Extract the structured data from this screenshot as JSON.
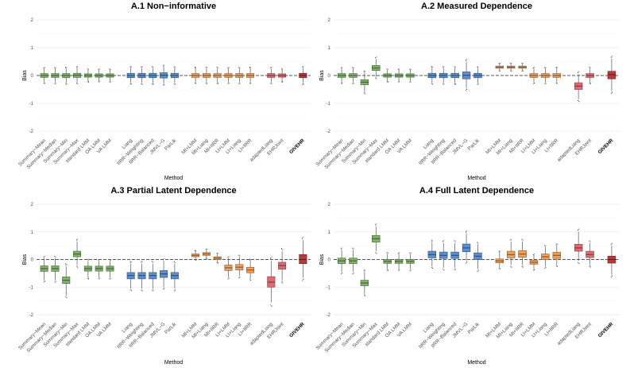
{
  "chart_data": {
    "type": "boxplot",
    "colors": {
      "summary": "#7fb36a",
      "joint": "#5b8fd1",
      "mi": "#f0a05a",
      "adapted": "#e06a73",
      "givehr": "#b83a3a",
      "reference_line": "#555555",
      "grid": "#ebebeb"
    },
    "ylim": [
      -2.2,
      2.2
    ],
    "yticks": [
      -2,
      -1,
      0,
      1,
      2
    ],
    "reference_value": 0,
    "panels": [
      {
        "title": "A.1 Non−informative",
        "xlabel": "Method",
        "ylabel": "Bias",
        "groups": [
          {
            "category": "summary",
            "labels": [
              "Summary−Mean",
              "Summary−Median",
              "Summary−Min",
              "Summary−Max",
              "standard LMM",
              "OA LMM",
              "VA LMM"
            ],
            "medians": [
              0,
              0,
              0,
              0.01,
              0,
              0,
              0
            ],
            "q1": [
              -0.07,
              -0.07,
              -0.08,
              -0.07,
              -0.06,
              -0.06,
              -0.06
            ],
            "q3": [
              0.07,
              0.07,
              0.07,
              0.08,
              0.06,
              0.06,
              0.06
            ],
            "lo": [
              -0.25,
              -0.25,
              -0.27,
              -0.25,
              -0.2,
              -0.2,
              -0.2
            ],
            "hi": [
              0.25,
              0.25,
              0.25,
              0.27,
              0.2,
              0.2,
              0.2
            ]
          },
          {
            "category": "joint",
            "labels": [
              "Liang",
              "IIRR−Weighting",
              "IIRR−Balanced",
              "JMVL−G",
              "ParLik"
            ],
            "medians": [
              0,
              0,
              0,
              0.01,
              0
            ],
            "q1": [
              -0.08,
              -0.08,
              -0.08,
              -0.09,
              -0.08
            ],
            "q3": [
              0.08,
              0.08,
              0.08,
              0.1,
              0.08
            ],
            "lo": [
              -0.27,
              -0.27,
              -0.27,
              -0.3,
              -0.27
            ],
            "hi": [
              0.27,
              0.27,
              0.27,
              0.32,
              0.27
            ]
          },
          {
            "category": "mi",
            "labels": [
              "MI+LMM",
              "MI+Liang",
              "MI+IIRR",
              "LI+LMM",
              "LI+Liang",
              "LI+IIRR"
            ],
            "medians": [
              0,
              0,
              0,
              0,
              0,
              0
            ],
            "q1": [
              -0.07,
              -0.07,
              -0.07,
              -0.07,
              -0.07,
              -0.07
            ],
            "q3": [
              0.07,
              0.07,
              0.07,
              0.07,
              0.07,
              0.07
            ],
            "lo": [
              -0.25,
              -0.25,
              -0.25,
              -0.25,
              -0.25,
              -0.25
            ],
            "hi": [
              0.25,
              0.25,
              0.25,
              0.25,
              0.25,
              0.25
            ]
          },
          {
            "category": "adapted",
            "labels": [
              "adaptedLiang",
              "EHRJoint"
            ],
            "medians": [
              0,
              0
            ],
            "q1": [
              -0.07,
              -0.06
            ],
            "q3": [
              0.07,
              0.06
            ],
            "lo": [
              -0.25,
              -0.2
            ],
            "hi": [
              0.25,
              0.2
            ]
          },
          {
            "category": "givehr",
            "labels": [
              "GIVEHR"
            ],
            "medians": [
              0
            ],
            "q1": [
              -0.08
            ],
            "q3": [
              0.08
            ],
            "lo": [
              -0.28
            ],
            "hi": [
              0.28
            ]
          }
        ]
      },
      {
        "title": "A.2 Measured Dependence",
        "xlabel": "Method",
        "ylabel": "Bias",
        "groups": [
          {
            "category": "summary",
            "labels": [
              "Summary−Mean",
              "Summary−Median",
              "Summary−Min",
              "Summary−Max",
              "standard LMM",
              "OA LMM",
              "VA LMM"
            ],
            "medians": [
              0,
              0,
              -0.24,
              0.27,
              0,
              0,
              0
            ],
            "q1": [
              -0.07,
              -0.07,
              -0.33,
              0.18,
              -0.06,
              -0.06,
              -0.06
            ],
            "q3": [
              0.07,
              0.07,
              -0.15,
              0.36,
              0.06,
              0.06,
              0.06
            ],
            "lo": [
              -0.25,
              -0.25,
              -0.6,
              -0.05,
              -0.2,
              -0.2,
              -0.2
            ],
            "hi": [
              0.25,
              0.25,
              0.1,
              0.6,
              0.2,
              0.2,
              0.2
            ]
          },
          {
            "category": "joint",
            "labels": [
              "Liang",
              "IIRR−Weighting",
              "IIRR−Balanced",
              "JMVL−G",
              "ParLik"
            ],
            "medians": [
              0,
              0,
              0,
              0.01,
              0
            ],
            "q1": [
              -0.08,
              -0.08,
              -0.08,
              -0.12,
              -0.08
            ],
            "q3": [
              0.08,
              0.08,
              0.08,
              0.13,
              0.08
            ],
            "lo": [
              -0.27,
              -0.27,
              -0.27,
              -0.45,
              -0.27
            ],
            "hi": [
              0.27,
              0.27,
              0.27,
              0.5,
              0.27
            ]
          },
          {
            "category": "mi",
            "labels": [
              "MI+LMM",
              "MI+Liang",
              "MI+IIRR",
              "LI+LMM",
              "LI+Liang",
              "LI+IIRR"
            ],
            "medians": [
              0.3,
              0.3,
              0.3,
              0,
              0,
              0
            ],
            "q1": [
              0.26,
              0.26,
              0.26,
              -0.07,
              -0.07,
              -0.07
            ],
            "q3": [
              0.34,
              0.34,
              0.34,
              0.07,
              0.07,
              0.07
            ],
            "lo": [
              0.18,
              0.18,
              0.18,
              -0.25,
              -0.25,
              -0.25
            ],
            "hi": [
              0.42,
              0.42,
              0.42,
              0.25,
              0.25,
              0.25
            ]
          },
          {
            "category": "adapted",
            "labels": [
              "adaptedLiang",
              "EHRJoint"
            ],
            "medians": [
              -0.38,
              0
            ],
            "q1": [
              -0.5,
              -0.07
            ],
            "q3": [
              -0.26,
              0.07
            ],
            "lo": [
              -0.85,
              -0.25
            ],
            "hi": [
              0.05,
              0.25
            ]
          },
          {
            "category": "givehr",
            "labels": [
              "GIVEHR"
            ],
            "medians": [
              0.03
            ],
            "q1": [
              -0.12
            ],
            "q3": [
              0.15
            ],
            "lo": [
              -0.55
            ],
            "hi": [
              0.6
            ]
          }
        ]
      },
      {
        "title": "A.3 Partial Latent Dependence",
        "xlabel": "Method",
        "ylabel": "Bias",
        "groups": [
          {
            "category": "summary",
            "labels": [
              "Summary−Mean",
              "Summary−Median",
              "Summary−Min",
              "Summary−Max",
              "standard LMM",
              "OA LMM",
              "VA LMM"
            ],
            "medians": [
              -0.33,
              -0.33,
              -0.75,
              0.2,
              -0.33,
              -0.33,
              -0.33
            ],
            "q1": [
              -0.43,
              -0.43,
              -0.87,
              0.1,
              -0.42,
              -0.42,
              -0.42
            ],
            "q3": [
              -0.23,
              -0.23,
              -0.63,
              0.3,
              -0.24,
              -0.24,
              -0.24
            ],
            "lo": [
              -0.75,
              -0.75,
              -1.3,
              -0.2,
              -0.65,
              -0.65,
              -0.65
            ],
            "hi": [
              0.05,
              0.05,
              -0.25,
              0.65,
              -0.05,
              -0.05,
              -0.05
            ]
          },
          {
            "category": "joint",
            "labels": [
              "Liang",
              "IIRR−Weighting",
              "IIRR−Balanced",
              "JMVL−G",
              "ParLik"
            ],
            "medians": [
              -0.58,
              -0.58,
              -0.58,
              -0.52,
              -0.58
            ],
            "q1": [
              -0.7,
              -0.7,
              -0.7,
              -0.65,
              -0.7
            ],
            "q3": [
              -0.47,
              -0.47,
              -0.47,
              -0.4,
              -0.47
            ],
            "lo": [
              -1.05,
              -1.05,
              -1.05,
              -1.0,
              -1.05
            ],
            "hi": [
              -0.15,
              -0.15,
              -0.15,
              -0.05,
              -0.15
            ]
          },
          {
            "category": "mi",
            "labels": [
              "MI+LMM",
              "MI+Liang",
              "MI+IIRR",
              "LI+LMM",
              "LI+Liang",
              "LI+IIRR"
            ],
            "medians": [
              0.15,
              0.2,
              0.05,
              -0.3,
              -0.28,
              -0.38
            ],
            "q1": [
              0.1,
              0.15,
              0.0,
              -0.4,
              -0.38,
              -0.48
            ],
            "q3": [
              0.2,
              0.25,
              0.1,
              -0.2,
              -0.18,
              -0.28
            ],
            "lo": [
              0.0,
              0.05,
              -0.1,
              -0.65,
              -0.6,
              -0.7
            ],
            "hi": [
              0.3,
              0.35,
              0.2,
              0.05,
              0.1,
              -0.05
            ]
          },
          {
            "category": "adapted",
            "labels": [
              "adaptedLiang",
              "EHRJoint"
            ],
            "medians": [
              -0.82,
              -0.22
            ],
            "q1": [
              -1.0,
              -0.35
            ],
            "q3": [
              -0.62,
              -0.1
            ],
            "lo": [
              -1.55,
              -0.75
            ],
            "hi": [
              -0.05,
              0.3
            ]
          },
          {
            "category": "givehr",
            "labels": [
              "GIVEHR"
            ],
            "medians": [
              0.0
            ],
            "q1": [
              -0.15
            ],
            "q3": [
              0.18
            ],
            "lo": [
              -0.65
            ],
            "hi": [
              0.7
            ]
          }
        ]
      },
      {
        "title": "A.4 Full Latent Dependence",
        "xlabel": "Method",
        "ylabel": "Bias",
        "groups": [
          {
            "category": "summary",
            "labels": [
              "Summary−Mean",
              "Summary−Median",
              "Summary−Min",
              "Summary−Max",
              "standard LMM",
              "OA LMM",
              "VA LMM"
            ],
            "medians": [
              -0.05,
              -0.05,
              -0.85,
              0.75,
              -0.07,
              -0.07,
              -0.07
            ],
            "q1": [
              -0.15,
              -0.15,
              -0.95,
              0.63,
              -0.14,
              -0.14,
              -0.14
            ],
            "q3": [
              0.05,
              0.05,
              -0.75,
              0.87,
              0.0,
              0.0,
              0.0
            ],
            "lo": [
              -0.45,
              -0.45,
              -1.25,
              0.3,
              -0.35,
              -0.35,
              -0.35
            ],
            "hi": [
              0.35,
              0.35,
              -0.45,
              1.2,
              0.2,
              0.2,
              0.2
            ]
          },
          {
            "category": "joint",
            "labels": [
              "Liang",
              "IIRR−Weighting",
              "IIRR−Balanced",
              "JMVL−G",
              "ParLik"
            ],
            "medians": [
              0.18,
              0.15,
              0.15,
              0.42,
              0.12
            ],
            "q1": [
              0.06,
              0.04,
              0.04,
              0.28,
              0.0
            ],
            "q3": [
              0.3,
              0.27,
              0.27,
              0.56,
              0.24
            ],
            "lo": [
              -0.25,
              -0.3,
              -0.3,
              -0.05,
              -0.35
            ],
            "hi": [
              0.62,
              0.6,
              0.6,
              0.95,
              0.55
            ]
          },
          {
            "category": "mi",
            "labels": [
              "MI+LMM",
              "MI+Liang",
              "MI+IIRR",
              "LI+LMM",
              "LI+Liang",
              "LI+IIRR"
            ],
            "medians": [
              -0.05,
              0.18,
              0.2,
              -0.1,
              0.1,
              0.15
            ],
            "q1": [
              -0.12,
              0.06,
              0.08,
              -0.17,
              0.0,
              0.04
            ],
            "q3": [
              0.02,
              0.3,
              0.32,
              -0.03,
              0.2,
              0.26
            ],
            "lo": [
              -0.3,
              -0.2,
              -0.2,
              -0.35,
              -0.25,
              -0.2
            ],
            "hi": [
              0.25,
              0.65,
              0.65,
              0.15,
              0.45,
              0.5
            ]
          },
          {
            "category": "adapted",
            "labels": [
              "adaptedLiang",
              "EHRJoint"
            ],
            "medians": [
              0.42,
              0.18
            ],
            "q1": [
              0.3,
              0.07
            ],
            "q3": [
              0.55,
              0.3
            ],
            "lo": [
              -0.05,
              -0.2
            ],
            "hi": [
              1.0,
              0.6
            ]
          },
          {
            "category": "givehr",
            "labels": [
              "GIVEHR"
            ],
            "medians": [
              0.0
            ],
            "q1": [
              -0.13
            ],
            "q3": [
              0.12
            ],
            "lo": [
              -0.55
            ],
            "hi": [
              0.5
            ]
          }
        ]
      }
    ]
  }
}
